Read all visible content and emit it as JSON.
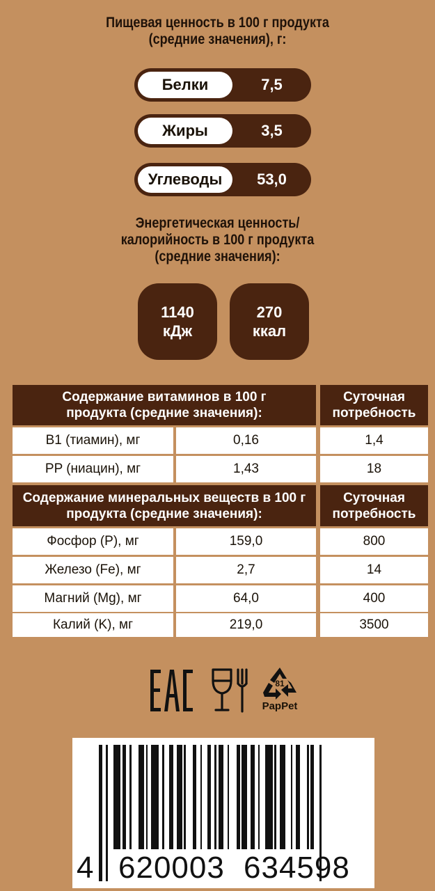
{
  "nutrition": {
    "heading_line1": "Пищевая ценность в 100 г продукта",
    "heading_line2": "(средние значения), г:",
    "items": [
      {
        "label": "Белки",
        "value": "7,5"
      },
      {
        "label": "Жиры",
        "value": "3,5"
      },
      {
        "label": "Углеводы",
        "value": "53,0"
      }
    ]
  },
  "energy": {
    "heading_line1": "Энергетическая ценность/",
    "heading_line2": "калорийность в 100 г продукта",
    "heading_line3": "(средние значения):",
    "kj_value": "1140",
    "kj_unit": "кДж",
    "kcal_value": "270",
    "kcal_unit": "ккал"
  },
  "vitamins": {
    "header_line1": "Содержание витаминов в 100 г",
    "header_line2": "продукта (средние значения):",
    "daily_line1": "Суточная",
    "daily_line2": "потребность",
    "rows": [
      {
        "name": "B1 (тиамин), мг",
        "value": "0,16",
        "daily": "1,4"
      },
      {
        "name": "PP (ниацин), мг",
        "value": "1,43",
        "daily": "18"
      }
    ]
  },
  "minerals": {
    "header_line1": "Содержание минеральных веществ в 100 г",
    "header_line2": "продукта (средние значения):",
    "daily_line1": "Суточная",
    "daily_line2": "потребность",
    "rows": [
      {
        "name": "Фосфор (P), мг",
        "value": "159,0",
        "daily": "800"
      },
      {
        "name": "Железо (Fe), мг",
        "value": "2,7",
        "daily": "14"
      },
      {
        "name": "Магний (Mg), мг",
        "value": "64,0",
        "daily": "400"
      },
      {
        "name": "Калий (K), мг",
        "value": "219,0",
        "daily": "3500"
      }
    ]
  },
  "marks": {
    "eac_logo": "EAC",
    "icons": [
      "eac-mark-icon",
      "glass-fork-icon",
      "recycle-icon"
    ],
    "recycle_code": "81",
    "recycle_label": "PapPet"
  },
  "barcode": {
    "digit_first": "4",
    "group_left": "620003",
    "group_right": "634598"
  },
  "colors": {
    "background": "#c4905f",
    "accent_dark": "#4a2410",
    "cell": "#ffffff"
  }
}
